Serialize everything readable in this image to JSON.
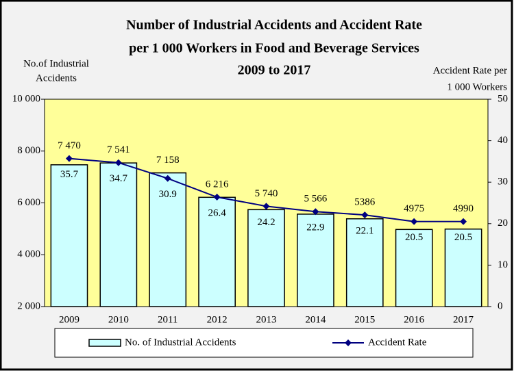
{
  "chart_data": {
    "type": "combo",
    "title": [
      "Number of Industrial Accidents  and Accident Rate",
      "per 1 000 Workers in Food and Beverage Services",
      "2009 to 2017"
    ],
    "y_label": [
      "No.of Industrial",
      "Accidents"
    ],
    "y2_label": [
      "Accident Rate per",
      "1 000 Workers"
    ],
    "categories": [
      "2009",
      "2010",
      "2011",
      "2012",
      "2013",
      "2014",
      "2015",
      "2016",
      "2017"
    ],
    "series": [
      {
        "name": "No. of Industrial Accidents",
        "type": "bar",
        "color": "#ccffff",
        "values": [
          7470,
          7541,
          7158,
          6216,
          5740,
          5566,
          5386,
          4975,
          4990
        ],
        "value_labels": [
          "7 470",
          "7 541",
          "7 158",
          "6 216",
          "5 740",
          "5 566",
          "5386",
          "4975",
          "4990"
        ]
      },
      {
        "name": "Accident Rate",
        "type": "line",
        "axis": "y2",
        "color": "#000080",
        "values": [
          35.7,
          34.7,
          30.9,
          26.4,
          24.2,
          22.9,
          22.1,
          20.5,
          20.5
        ]
      }
    ],
    "ylim": [
      2000,
      10000
    ],
    "yticks": [
      {
        "value": 2000,
        "label": "2 000"
      },
      {
        "value": 4000,
        "label": "4 000"
      },
      {
        "value": 6000,
        "label": "6 000"
      },
      {
        "value": 8000,
        "label": "8 000"
      },
      {
        "value": 10000,
        "label": "10 000"
      }
    ],
    "y2lim": [
      0,
      50
    ],
    "y2ticks": [
      0,
      10,
      20,
      30,
      40,
      50
    ],
    "legend": "bottom"
  }
}
